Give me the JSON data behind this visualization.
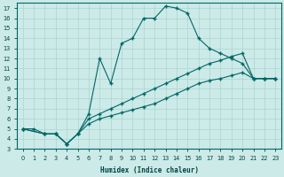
{
  "xlabel": "Humidex (Indice chaleur)",
  "bg_color": "#cceae8",
  "grid_color": "#aad4d0",
  "line_color": "#006666",
  "xlim": [
    -0.5,
    23.5
  ],
  "ylim": [
    3,
    17.5
  ],
  "xticks": [
    0,
    1,
    2,
    3,
    4,
    5,
    6,
    7,
    8,
    9,
    10,
    11,
    12,
    13,
    14,
    15,
    16,
    17,
    18,
    19,
    20,
    21,
    22,
    23
  ],
  "yticks": [
    3,
    4,
    5,
    6,
    7,
    8,
    9,
    10,
    11,
    12,
    13,
    14,
    15,
    16,
    17
  ],
  "line1_x": [
    0,
    1,
    2,
    3,
    4,
    5,
    6,
    7,
    8,
    9,
    10,
    11,
    12,
    13,
    14,
    15,
    16,
    17,
    18,
    19,
    20,
    21,
    22,
    23
  ],
  "line1_y": [
    5,
    5,
    4.5,
    4.5,
    3.5,
    4.5,
    6.5,
    12,
    9.5,
    13.5,
    14,
    16,
    16,
    17.2,
    17,
    16.5,
    14,
    13,
    12.5,
    12,
    11.5,
    10,
    10,
    10
  ],
  "line2_x": [
    0,
    2,
    3,
    4,
    5,
    6,
    7,
    8,
    9,
    10,
    11,
    12,
    13,
    14,
    15,
    16,
    17,
    18,
    19,
    20,
    21,
    22,
    23
  ],
  "line2_y": [
    5,
    4.5,
    4.5,
    3.5,
    4.5,
    6.0,
    6.5,
    7.0,
    7.5,
    8.0,
    8.5,
    9.0,
    9.5,
    10.0,
    10.5,
    11.0,
    11.5,
    11.8,
    12.2,
    12.5,
    10,
    10,
    10
  ],
  "line3_x": [
    0,
    2,
    3,
    4,
    5,
    6,
    7,
    8,
    9,
    10,
    11,
    12,
    13,
    14,
    15,
    16,
    17,
    18,
    19,
    20,
    21,
    22,
    23
  ],
  "line3_y": [
    5,
    4.5,
    4.5,
    3.5,
    4.5,
    5.5,
    6.0,
    6.3,
    6.6,
    6.9,
    7.2,
    7.5,
    8.0,
    8.5,
    9.0,
    9.5,
    9.8,
    10.0,
    10.3,
    10.6,
    10,
    10,
    10
  ]
}
